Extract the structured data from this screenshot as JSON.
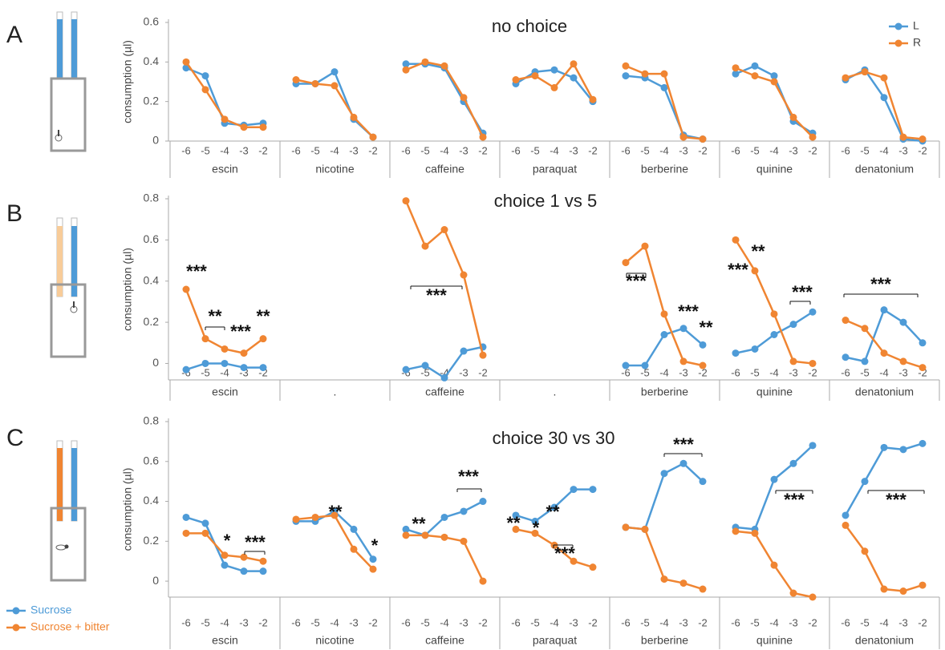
{
  "chart_data": [
    {
      "type": "line",
      "panel": "A",
      "title": "no choice",
      "y_label": "consumption (µl)",
      "ylim": [
        0,
        0.6
      ],
      "yticks": [
        0,
        0.2,
        0.4,
        0.6
      ],
      "legend": "top-right",
      "categories": [
        -6,
        -5,
        -4,
        -3,
        -2
      ],
      "series": [
        {
          "name": "L",
          "color": "#4e9bd7"
        },
        {
          "name": "R",
          "color": "#f08532"
        }
      ],
      "groups": [
        {
          "name": "escin",
          "values": [
            [
              0.37,
              0.33,
              0.09,
              0.08,
              0.09
            ],
            [
              0.4,
              0.26,
              0.11,
              0.07,
              0.07
            ]
          ]
        },
        {
          "name": "nicotine",
          "values": [
            [
              0.29,
              0.29,
              0.35,
              0.11,
              0.02
            ],
            [
              0.31,
              0.29,
              0.28,
              0.12,
              0.02
            ]
          ]
        },
        {
          "name": "caffeine",
          "values": [
            [
              0.39,
              0.39,
              0.37,
              0.2,
              0.04
            ],
            [
              0.36,
              0.4,
              0.38,
              0.22,
              0.02
            ]
          ]
        },
        {
          "name": "paraquat",
          "values": [
            [
              0.29,
              0.35,
              0.36,
              0.32,
              0.2
            ],
            [
              0.31,
              0.33,
              0.27,
              0.39,
              0.21
            ]
          ]
        },
        {
          "name": "berberine",
          "values": [
            [
              0.33,
              0.32,
              0.27,
              0.03,
              0.01
            ],
            [
              0.38,
              0.34,
              0.34,
              0.02,
              0.01
            ]
          ]
        },
        {
          "name": "quinine",
          "values": [
            [
              0.34,
              0.38,
              0.33,
              0.1,
              0.04
            ],
            [
              0.37,
              0.33,
              0.3,
              0.12,
              0.02
            ]
          ]
        },
        {
          "name": "denatonium",
          "values": [
            [
              0.31,
              0.36,
              0.22,
              0.01,
              0.0
            ],
            [
              0.32,
              0.35,
              0.32,
              0.02,
              0.01
            ]
          ]
        }
      ],
      "annotations": []
    },
    {
      "type": "line",
      "panel": "B",
      "title": "choice 1 vs 5",
      "y_label": "consumption (µl)",
      "ylim": [
        -0.08,
        0.8
      ],
      "yticks": [
        0,
        0.2,
        0.4,
        0.6,
        0.8
      ],
      "categories": [
        -6,
        -5,
        -4,
        -3,
        -2
      ],
      "series": [
        {
          "color": "#4e9bd7"
        },
        {
          "color": "#f08532"
        }
      ],
      "groups": [
        {
          "name": "escin",
          "values": [
            [
              -0.03,
              0.0,
              0.0,
              -0.02,
              -0.02
            ],
            [
              0.36,
              0.12,
              0.07,
              0.05,
              0.12
            ]
          ]
        },
        {
          "name": ".",
          "values": []
        },
        {
          "name": "caffeine",
          "values": [
            [
              -0.03,
              -0.01,
              -0.07,
              0.06,
              0.08
            ],
            [
              0.79,
              0.57,
              0.65,
              0.43,
              0.04
            ]
          ]
        },
        {
          "name": ".",
          "values": []
        },
        {
          "name": "berberine",
          "values": [
            [
              -0.01,
              -0.01,
              0.14,
              0.17,
              0.09
            ],
            [
              0.49,
              0.57,
              0.24,
              0.01,
              -0.01
            ]
          ]
        },
        {
          "name": "quinine",
          "values": [
            [
              0.05,
              0.07,
              0.14,
              0.19,
              0.25
            ],
            [
              0.6,
              0.45,
              0.24,
              0.01,
              0.0
            ]
          ]
        },
        {
          "name": "denatonium",
          "values": [
            [
              0.03,
              0.01,
              0.26,
              0.2,
              0.1
            ],
            [
              0.21,
              0.17,
              0.05,
              0.01,
              -0.02
            ]
          ]
        }
      ],
      "annotations": [
        "***",
        "**",
        "***",
        "**",
        "***",
        "***",
        "***",
        "**",
        "***",
        "**",
        "***",
        "***"
      ]
    },
    {
      "type": "line",
      "panel": "C",
      "title": "choice 30 vs 30",
      "y_label": "consumption (µl)",
      "ylim": [
        -0.08,
        0.8
      ],
      "yticks": [
        0,
        0.2,
        0.4,
        0.6,
        0.8
      ],
      "legend": "bottom-left",
      "categories": [
        -6,
        -5,
        -4,
        -3,
        -2
      ],
      "series": [
        {
          "name": "Sucrose",
          "color": "#4e9bd7"
        },
        {
          "name": "Sucrose + bitter",
          "color": "#f08532"
        }
      ],
      "groups": [
        {
          "name": "escin",
          "values": [
            [
              0.32,
              0.29,
              0.08,
              0.05,
              0.05
            ],
            [
              0.24,
              0.24,
              0.13,
              0.12,
              0.1
            ]
          ]
        },
        {
          "name": "nicotine",
          "values": [
            [
              0.3,
              0.3,
              0.35,
              0.26,
              0.11
            ],
            [
              0.31,
              0.32,
              0.33,
              0.16,
              0.06
            ]
          ]
        },
        {
          "name": "caffeine",
          "values": [
            [
              0.26,
              0.23,
              0.32,
              0.35,
              0.4
            ],
            [
              0.23,
              0.23,
              0.22,
              0.2,
              0.0
            ]
          ]
        },
        {
          "name": "paraquat",
          "values": [
            [
              0.33,
              0.3,
              0.37,
              0.46,
              0.46
            ],
            [
              0.26,
              0.24,
              0.18,
              0.1,
              0.07
            ]
          ]
        },
        {
          "name": "berberine",
          "values": [
            [
              0.27,
              0.26,
              0.54,
              0.59,
              0.5
            ],
            [
              0.27,
              0.26,
              0.01,
              -0.01,
              -0.04
            ]
          ]
        },
        {
          "name": "quinine",
          "values": [
            [
              0.27,
              0.26,
              0.51,
              0.59,
              0.68
            ],
            [
              0.25,
              0.24,
              0.08,
              -0.06,
              -0.08
            ]
          ]
        },
        {
          "name": "denatonium",
          "values": [
            [
              0.33,
              0.5,
              0.67,
              0.66,
              0.69
            ],
            [
              0.28,
              0.15,
              -0.04,
              -0.05,
              -0.02
            ]
          ]
        }
      ],
      "annotations": [
        "*",
        "***",
        "**",
        "*",
        "**",
        "***",
        "**",
        "*",
        "**",
        "***",
        "***",
        "***",
        "***"
      ]
    }
  ]
}
